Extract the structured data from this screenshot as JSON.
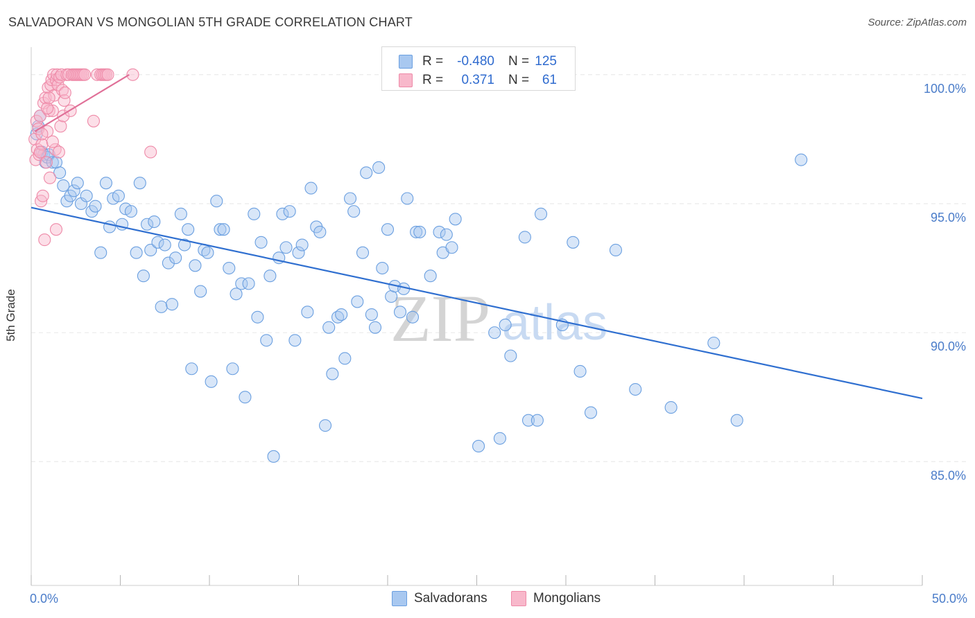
{
  "title": "SALVADORAN VS MONGOLIAN 5TH GRADE CORRELATION CHART",
  "source": "Source: ZipAtlas.com",
  "watermark": {
    "zip": "ZIP",
    "atlas": "atlas"
  },
  "legend": {
    "rows": [
      {
        "series": "Salvadorans",
        "r_label": "R =",
        "r_value": "-0.480",
        "n_label": "N =",
        "n_value": "125"
      },
      {
        "series": "Mongolians",
        "r_label": "R =",
        "r_value": "0.371",
        "n_label": "N =",
        "n_value": "61"
      }
    ]
  },
  "bottom_legend": [
    "Salvadorans",
    "Mongolians"
  ],
  "colors": {
    "salvadorans_fill": "#a8c8f0",
    "salvadorans_stroke": "#6a9fe0",
    "salvadorans_line": "#2f6fd0",
    "mongolians_fill": "#f8b8cb",
    "mongolians_stroke": "#ee8aa8",
    "mongolians_line": "#e07098",
    "tick_text": "#4a7cc9",
    "grid": "#e6e6e6"
  },
  "chart_data": {
    "type": "scatter",
    "title": "SALVADORAN VS MONGOLIAN 5TH GRADE CORRELATION CHART",
    "xlabel": "",
    "ylabel": "5th Grade",
    "xlim": [
      0,
      50
    ],
    "ylim": [
      80.2,
      100.8
    ],
    "x_tick_labels": [
      {
        "value": 0,
        "label": "0.0%"
      },
      {
        "value": 50,
        "label": "50.0%"
      }
    ],
    "x_minor_ticks": [
      0,
      5,
      10,
      15,
      20,
      25,
      30,
      35,
      40,
      45,
      50
    ],
    "y_tick_labels": [
      {
        "value": 100,
        "label": "100.0%"
      },
      {
        "value": 95,
        "label": "95.0%"
      },
      {
        "value": 90,
        "label": "90.0%"
      },
      {
        "value": 85,
        "label": "85.0%"
      }
    ],
    "grid": true,
    "legend_position": "top-center",
    "series": [
      {
        "name": "Salvadorans",
        "trend": {
          "x": [
            0,
            50
          ],
          "y": [
            94.85,
            87.45
          ]
        },
        "points": [
          [
            0.3,
            97.7
          ],
          [
            0.4,
            98.0
          ],
          [
            0.5,
            98.4
          ],
          [
            0.6,
            97.0
          ],
          [
            0.7,
            96.9
          ],
          [
            0.8,
            96.6
          ],
          [
            0.9,
            96.8
          ],
          [
            1.0,
            96.9
          ],
          [
            1.2,
            96.6
          ],
          [
            1.4,
            96.6
          ],
          [
            1.6,
            96.2
          ],
          [
            1.8,
            95.7
          ],
          [
            2.0,
            95.1
          ],
          [
            2.2,
            95.3
          ],
          [
            2.4,
            95.5
          ],
          [
            2.6,
            95.8
          ],
          [
            2.8,
            95.0
          ],
          [
            3.1,
            95.3
          ],
          [
            3.4,
            94.7
          ],
          [
            3.6,
            94.9
          ],
          [
            3.9,
            93.1
          ],
          [
            4.2,
            95.8
          ],
          [
            4.4,
            94.1
          ],
          [
            4.6,
            95.2
          ],
          [
            4.9,
            95.3
          ],
          [
            5.1,
            94.2
          ],
          [
            5.3,
            94.8
          ],
          [
            5.6,
            94.7
          ],
          [
            5.9,
            93.1
          ],
          [
            6.1,
            95.8
          ],
          [
            6.3,
            92.2
          ],
          [
            6.5,
            94.2
          ],
          [
            6.7,
            93.2
          ],
          [
            6.9,
            94.3
          ],
          [
            7.1,
            93.5
          ],
          [
            7.3,
            91.0
          ],
          [
            7.5,
            93.4
          ],
          [
            7.7,
            92.7
          ],
          [
            7.9,
            91.1
          ],
          [
            8.1,
            92.9
          ],
          [
            8.4,
            94.6
          ],
          [
            8.6,
            93.4
          ],
          [
            8.8,
            94.0
          ],
          [
            9.0,
            88.6
          ],
          [
            9.2,
            92.6
          ],
          [
            9.5,
            91.6
          ],
          [
            9.7,
            93.2
          ],
          [
            9.9,
            93.1
          ],
          [
            10.1,
            88.1
          ],
          [
            10.4,
            95.1
          ],
          [
            10.6,
            94.0
          ],
          [
            10.8,
            94.0
          ],
          [
            11.1,
            92.5
          ],
          [
            11.3,
            88.6
          ],
          [
            11.5,
            91.5
          ],
          [
            11.8,
            91.9
          ],
          [
            12.0,
            87.5
          ],
          [
            12.2,
            91.9
          ],
          [
            12.5,
            94.6
          ],
          [
            12.7,
            90.6
          ],
          [
            12.9,
            93.5
          ],
          [
            13.2,
            89.7
          ],
          [
            13.4,
            92.2
          ],
          [
            13.6,
            85.2
          ],
          [
            13.9,
            92.9
          ],
          [
            14.1,
            94.6
          ],
          [
            14.3,
            93.3
          ],
          [
            14.5,
            94.7
          ],
          [
            14.8,
            89.7
          ],
          [
            15.0,
            93.1
          ],
          [
            15.2,
            93.4
          ],
          [
            15.5,
            90.8
          ],
          [
            15.7,
            95.6
          ],
          [
            16.0,
            94.1
          ],
          [
            16.2,
            93.9
          ],
          [
            16.5,
            86.4
          ],
          [
            16.7,
            90.2
          ],
          [
            16.9,
            88.4
          ],
          [
            17.2,
            90.6
          ],
          [
            17.4,
            90.7
          ],
          [
            17.6,
            89.0
          ],
          [
            17.9,
            95.2
          ],
          [
            18.1,
            94.7
          ],
          [
            18.3,
            91.2
          ],
          [
            18.6,
            93.1
          ],
          [
            18.8,
            96.2
          ],
          [
            19.1,
            90.7
          ],
          [
            19.3,
            90.2
          ],
          [
            19.5,
            96.4
          ],
          [
            19.7,
            92.5
          ],
          [
            20.0,
            94.0
          ],
          [
            20.2,
            91.4
          ],
          [
            20.4,
            91.8
          ],
          [
            20.7,
            90.8
          ],
          [
            20.9,
            91.7
          ],
          [
            21.1,
            95.2
          ],
          [
            21.4,
            90.6
          ],
          [
            21.6,
            93.9
          ],
          [
            21.8,
            93.9
          ],
          [
            22.4,
            92.2
          ],
          [
            22.9,
            93.9
          ],
          [
            23.1,
            93.1
          ],
          [
            23.3,
            93.8
          ],
          [
            23.6,
            93.3
          ],
          [
            23.8,
            94.4
          ],
          [
            25.0,
            100.0
          ],
          [
            25.1,
            85.6
          ],
          [
            26.0,
            90.0
          ],
          [
            26.3,
            85.9
          ],
          [
            26.6,
            90.3
          ],
          [
            26.9,
            89.1
          ],
          [
            27.7,
            93.7
          ],
          [
            27.9,
            86.6
          ],
          [
            28.4,
            86.6
          ],
          [
            28.6,
            94.6
          ],
          [
            29.8,
            90.3
          ],
          [
            30.4,
            93.5
          ],
          [
            30.8,
            88.5
          ],
          [
            31.4,
            86.9
          ],
          [
            32.8,
            93.2
          ],
          [
            33.9,
            87.8
          ],
          [
            35.9,
            87.1
          ],
          [
            38.3,
            89.6
          ],
          [
            39.6,
            86.6
          ],
          [
            43.2,
            96.7
          ]
        ]
      },
      {
        "name": "Mongolians",
        "trend": {
          "x": [
            0.2,
            5.5
          ],
          "y": [
            97.8,
            100.0
          ]
        },
        "points": [
          [
            0.2,
            97.5
          ],
          [
            0.25,
            96.7
          ],
          [
            0.3,
            98.2
          ],
          [
            0.35,
            97.1
          ],
          [
            0.4,
            97.9
          ],
          [
            0.45,
            96.9
          ],
          [
            0.5,
            98.4
          ],
          [
            0.55,
            95.1
          ],
          [
            0.6,
            97.3
          ],
          [
            0.65,
            95.3
          ],
          [
            0.7,
            98.9
          ],
          [
            0.75,
            93.6
          ],
          [
            0.8,
            99.1
          ],
          [
            0.85,
            96.6
          ],
          [
            0.9,
            97.8
          ],
          [
            0.95,
            99.5
          ],
          [
            1.0,
            98.6
          ],
          [
            1.05,
            96.0
          ],
          [
            1.1,
            99.6
          ],
          [
            1.15,
            99.8
          ],
          [
            1.2,
            98.6
          ],
          [
            1.25,
            100.0
          ],
          [
            1.3,
            99.2
          ],
          [
            1.35,
            97.1
          ],
          [
            1.4,
            99.8
          ],
          [
            1.45,
            100.0
          ],
          [
            1.5,
            99.6
          ],
          [
            1.55,
            97.0
          ],
          [
            1.6,
            99.9
          ],
          [
            1.65,
            98.0
          ],
          [
            1.7,
            100.0
          ],
          [
            1.75,
            99.4
          ],
          [
            1.8,
            98.4
          ],
          [
            1.85,
            99.0
          ],
          [
            1.9,
            99.3
          ],
          [
            2.0,
            100.0
          ],
          [
            2.1,
            100.0
          ],
          [
            2.2,
            98.6
          ],
          [
            2.3,
            100.0
          ],
          [
            2.4,
            100.0
          ],
          [
            2.5,
            100.0
          ],
          [
            2.6,
            100.0
          ],
          [
            2.7,
            100.0
          ],
          [
            2.8,
            100.0
          ],
          [
            2.9,
            100.0
          ],
          [
            3.0,
            100.0
          ],
          [
            3.5,
            98.2
          ],
          [
            3.7,
            100.0
          ],
          [
            3.9,
            100.0
          ],
          [
            4.0,
            100.0
          ],
          [
            4.1,
            100.0
          ],
          [
            4.2,
            100.0
          ],
          [
            4.3,
            100.0
          ],
          [
            5.7,
            100.0
          ],
          [
            6.7,
            97.0
          ],
          [
            1.4,
            94.0
          ],
          [
            1.2,
            97.4
          ],
          [
            0.9,
            98.7
          ],
          [
            1.0,
            99.1
          ],
          [
            0.6,
            97.7
          ],
          [
            0.5,
            97.0
          ]
        ]
      }
    ]
  }
}
